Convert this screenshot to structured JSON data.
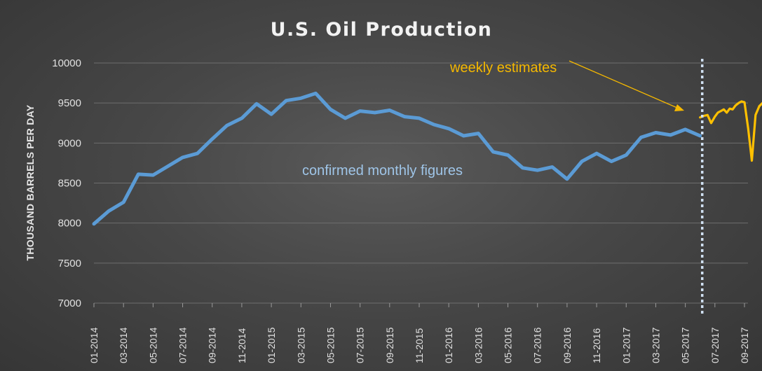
{
  "chart_data": {
    "type": "line",
    "title": "U.S. Oil Production",
    "ylabel": "THOUSAND BARRELS PER DAY",
    "xlabel": "",
    "ylim": [
      7000,
      10000
    ],
    "yticks": [
      7000,
      7500,
      8000,
      8500,
      9000,
      9500,
      10000
    ],
    "grid": true,
    "x_tick_labels": [
      "01-2014",
      "03-2014",
      "05-2014",
      "07-2014",
      "09-2014",
      "11-2014",
      "01-2015",
      "03-2015",
      "05-2015",
      "07-2015",
      "09-2015",
      "11-2015",
      "01-2016",
      "03-2016",
      "05-2016",
      "07-2016",
      "09-2016",
      "11-2016",
      "01-2017",
      "03-2017",
      "05-2017",
      "07-2017",
      "09-2017"
    ],
    "series": [
      {
        "kind": "monthly",
        "color": "#5b9bd5",
        "x": [
          "01-2014",
          "02-2014",
          "03-2014",
          "04-2014",
          "05-2014",
          "06-2014",
          "07-2014",
          "08-2014",
          "09-2014",
          "10-2014",
          "11-2014",
          "12-2014",
          "01-2015",
          "02-2015",
          "03-2015",
          "04-2015",
          "05-2015",
          "06-2015",
          "07-2015",
          "08-2015",
          "09-2015",
          "10-2015",
          "11-2015",
          "12-2015",
          "01-2016",
          "02-2016",
          "03-2016",
          "04-2016",
          "05-2016",
          "06-2016",
          "07-2016",
          "08-2016",
          "09-2016",
          "10-2016",
          "11-2016",
          "12-2016",
          "01-2017",
          "02-2017",
          "03-2017",
          "04-2017",
          "05-2017",
          "06-2017"
        ],
        "values": [
          7990,
          8150,
          8260,
          8610,
          8600,
          8710,
          8820,
          8870,
          9050,
          9220,
          9310,
          9490,
          9360,
          9530,
          9560,
          9620,
          9420,
          9310,
          9400,
          9380,
          9410,
          9330,
          9310,
          9230,
          9180,
          9090,
          9120,
          8890,
          8850,
          8690,
          8660,
          8700,
          8550,
          8770,
          8870,
          8770,
          8850,
          9070,
          9130,
          9100,
          9170,
          9090
        ]
      },
      {
        "kind": "weekly",
        "color": "#ffc000",
        "x": [
          "06-2017",
          "06-2017",
          "06-2017",
          "06-2017",
          "07-2017",
          "07-2017",
          "07-2017",
          "07-2017",
          "07-2017",
          "08-2017",
          "08-2017",
          "08-2017",
          "08-2017",
          "08-2017",
          "09-2017",
          "09-2017",
          "09-2017",
          "09-2017",
          "10-2017",
          "10-2017",
          "10-2017"
        ],
        "values": [
          9320,
          9340,
          9350,
          9250,
          9330,
          9380,
          9400,
          9420,
          9380,
          9430,
          9420,
          9470,
          9500,
          9520,
          9510,
          9180,
          8780,
          9350,
          9460,
          9520,
          9550
        ]
      }
    ],
    "annotations": {
      "monthly": "confirmed monthly figures",
      "weekly": "weekly estimates"
    }
  }
}
